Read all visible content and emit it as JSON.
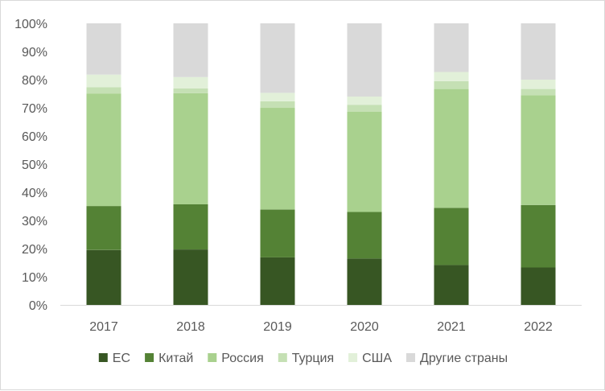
{
  "chart_data": {
    "type": "bar",
    "stacked": true,
    "normalized": true,
    "categories": [
      "2017",
      "2018",
      "2019",
      "2020",
      "2021",
      "2022"
    ],
    "series": [
      {
        "name": "ЕС",
        "color": "#375623",
        "values": [
          19.5,
          19.7,
          16.9,
          16.5,
          14.2,
          13.3
        ]
      },
      {
        "name": "Китай",
        "color": "#548235",
        "values": [
          15.6,
          16.0,
          17.0,
          16.5,
          20.3,
          22.2
        ]
      },
      {
        "name": "Россия",
        "color": "#a9d18e",
        "values": [
          39.9,
          39.5,
          36.1,
          35.6,
          42.2,
          39.0
        ]
      },
      {
        "name": "Турция",
        "color": "#c5e0b4",
        "values": [
          2.3,
          1.7,
          2.3,
          2.5,
          2.8,
          2.2
        ]
      },
      {
        "name": "США",
        "color": "#e2f0d9",
        "values": [
          4.5,
          4.0,
          3.0,
          2.9,
          3.2,
          3.3
        ]
      },
      {
        "name": "Другие страны",
        "color": "#d9d9d9",
        "values": [
          18.2,
          19.1,
          24.7,
          26.0,
          17.3,
          20.0
        ]
      }
    ],
    "y_ticks": [
      "0%",
      "10%",
      "20%",
      "30%",
      "40%",
      "50%",
      "60%",
      "70%",
      "80%",
      "90%",
      "100%"
    ],
    "ylim": [
      0,
      100
    ],
    "grid": false,
    "legend_position": "bottom"
  }
}
